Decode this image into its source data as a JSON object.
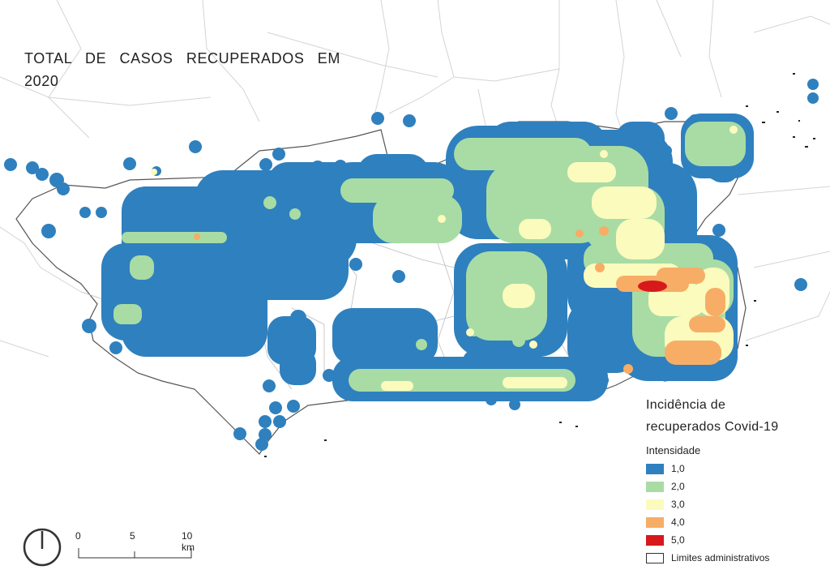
{
  "title": "TOTAL DE CASOS RECUPERADOS EM 2020",
  "legend": {
    "title_line1": "Incidência de",
    "title_line2": "recuperados Covid-19",
    "subtitle": "Intensidade",
    "items": [
      {
        "label": "1,0",
        "color": "#2f80be"
      },
      {
        "label": "2,0",
        "color": "#a8dca4"
      },
      {
        "label": "3,0",
        "color": "#fbfbbd"
      },
      {
        "label": "4,0",
        "color": "#f7ad66"
      },
      {
        "label": "5,0",
        "color": "#d7191c"
      }
    ],
    "boundary_label": "Limites administrativos"
  },
  "scale": {
    "labels": [
      "0",
      "5",
      "10 km"
    ]
  },
  "icons": {
    "north": "north-arrow-icon"
  }
}
